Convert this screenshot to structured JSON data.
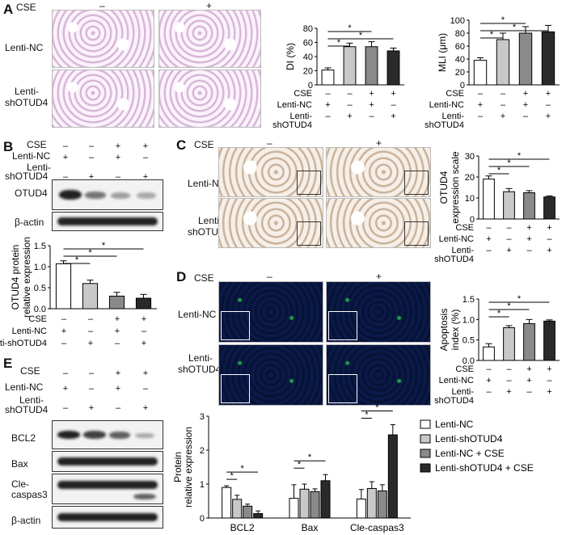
{
  "labels": {
    "a": "A",
    "b": "B",
    "c": "C",
    "d": "D",
    "e": "E"
  },
  "common": {
    "cse": "CSE",
    "minus": "–",
    "plus": "+",
    "lenti_nc": "Lenti-NC",
    "lenti_sh": "Lenti-shOTUD4",
    "lenti_sh_a": "Lenti-",
    "lenti_sh_b": "shOTUD4",
    "star": "*"
  },
  "wb": {
    "otud4": "OTUD4",
    "bactin": "β-actin",
    "bcl2": "BCL2",
    "bax": "Bax",
    "cle1": "Cle-",
    "cle2": "caspas3"
  },
  "colors": {
    "bar1": "#ffffff",
    "bar2": "#c8c8c8",
    "bar3": "#8a8a8a",
    "bar4": "#2a2a2a"
  },
  "chart_data": [
    {
      "id": "A-DI",
      "type": "bar",
      "ylabel": "DI (%)",
      "ylim": [
        0,
        80
      ],
      "yticks": [
        "0",
        "20",
        "40",
        "60",
        "80"
      ],
      "values": [
        21,
        54,
        54,
        48
      ],
      "errors": [
        3,
        5,
        7,
        4
      ]
    },
    {
      "id": "A-MLI",
      "type": "bar",
      "ylabel": "MLI (μm)",
      "ylim": [
        0,
        100
      ],
      "yticks": [
        "0",
        "20",
        "40",
        "60",
        "80",
        "100"
      ],
      "values": [
        38,
        70,
        80,
        82
      ],
      "errors": [
        4,
        10,
        10,
        10
      ]
    },
    {
      "id": "B-OTUD4",
      "type": "bar",
      "ylabel": "OTUD4 protein relative expression",
      "ylim": [
        0,
        1.5
      ],
      "yticks": [
        "0.0",
        "0.5",
        "1.0",
        "1.5"
      ],
      "values": [
        1.07,
        0.6,
        0.3,
        0.25
      ],
      "errors": [
        0.07,
        0.08,
        0.09,
        0.09
      ]
    },
    {
      "id": "C-OTUD4",
      "type": "bar",
      "ylabel": "OTUD4 expression scale",
      "ylim": [
        0,
        30
      ],
      "yticks": [
        "0",
        "10",
        "20",
        "30"
      ],
      "values": [
        19,
        13,
        12.5,
        10.5
      ],
      "errors": [
        1.5,
        1.5,
        1,
        0.5
      ]
    },
    {
      "id": "D-Apoptosis",
      "type": "bar",
      "ylabel": "Apoptosis index (%)",
      "ylim": [
        0,
        1.5
      ],
      "yticks": [
        "0.0",
        "0.5",
        "1.0",
        "1.5"
      ],
      "values": [
        0.33,
        0.8,
        0.9,
        0.96
      ],
      "errors": [
        0.08,
        0.05,
        0.1,
        0.03
      ]
    },
    {
      "id": "E-Protein",
      "type": "bar",
      "ylabel": "Protein relative expression",
      "ylim": [
        0,
        3
      ],
      "yticks": [
        "0",
        "1",
        "2",
        "3"
      ],
      "categories": [
        "BCL2",
        "Bax",
        "Cle-caspas3"
      ],
      "series": [
        {
          "name": "Lenti-NC",
          "values": [
            0.9,
            0.58,
            0.56
          ],
          "errors": [
            0.05,
            0.4,
            0.28
          ]
        },
        {
          "name": "Lenti-shOTUD4",
          "values": [
            0.55,
            0.85,
            0.87
          ],
          "errors": [
            0.12,
            0.15,
            0.2
          ]
        },
        {
          "name": "Lenti-NC + CSE",
          "values": [
            0.35,
            0.78,
            0.8
          ],
          "errors": [
            0.06,
            0.08,
            0.18
          ]
        },
        {
          "name": "Lenti-shOTUD4 + CSE",
          "values": [
            0.13,
            1.1,
            2.45
          ],
          "errors": [
            0.08,
            0.18,
            0.3
          ]
        }
      ]
    }
  ]
}
